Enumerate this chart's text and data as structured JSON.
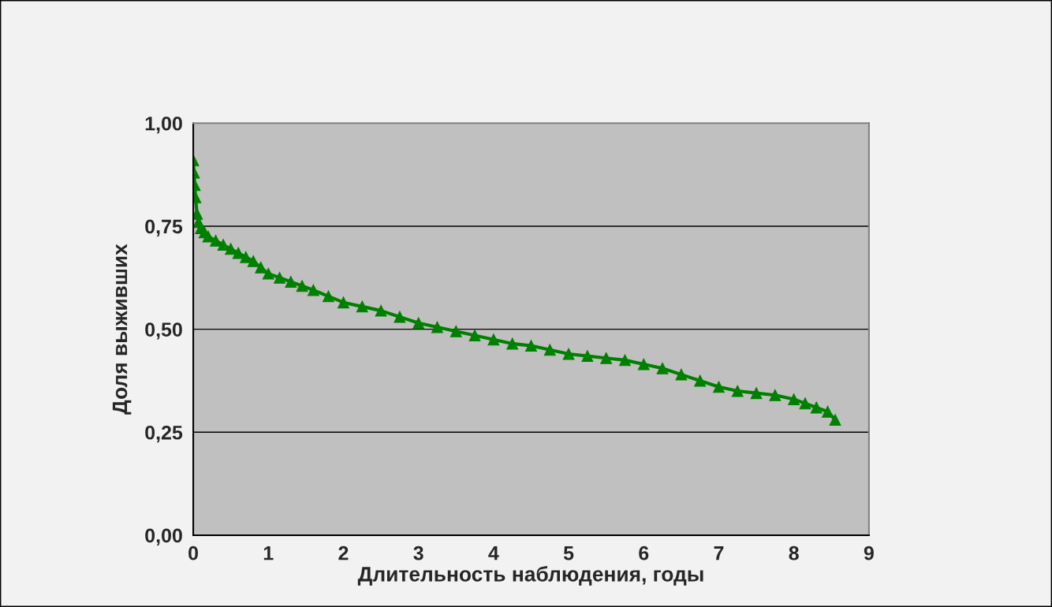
{
  "chart_data": {
    "type": "line",
    "xlabel": "Длительность наблюдения, годы",
    "ylabel": "Доля выживших",
    "x": [
      0,
      0.01,
      0.02,
      0.03,
      0.05,
      0.07,
      0.1,
      0.15,
      0.2,
      0.3,
      0.4,
      0.5,
      0.6,
      0.7,
      0.8,
      0.9,
      1.0,
      1.15,
      1.3,
      1.45,
      1.6,
      1.8,
      2.0,
      2.25,
      2.5,
      2.75,
      3.0,
      3.25,
      3.5,
      3.75,
      4.0,
      4.25,
      4.5,
      4.75,
      5.0,
      5.25,
      5.5,
      5.75,
      6.0,
      6.25,
      6.5,
      6.75,
      7.0,
      7.25,
      7.5,
      7.75,
      8.0,
      8.15,
      8.3,
      8.45,
      8.55
    ],
    "series": [
      {
        "color": "#008000",
        "values": [
          0.91,
          0.88,
          0.85,
          0.82,
          0.78,
          0.76,
          0.745,
          0.735,
          0.725,
          0.715,
          0.705,
          0.695,
          0.685,
          0.675,
          0.665,
          0.65,
          0.635,
          0.625,
          0.615,
          0.605,
          0.595,
          0.58,
          0.565,
          0.555,
          0.545,
          0.53,
          0.515,
          0.505,
          0.495,
          0.485,
          0.475,
          0.465,
          0.46,
          0.45,
          0.44,
          0.435,
          0.43,
          0.425,
          0.415,
          0.405,
          0.39,
          0.375,
          0.36,
          0.35,
          0.345,
          0.34,
          0.33,
          0.32,
          0.31,
          0.3,
          0.28
        ]
      }
    ],
    "xlim": [
      0,
      9
    ],
    "xticks": [
      0,
      1,
      2,
      3,
      4,
      5,
      6,
      7,
      8,
      9
    ],
    "ylim": [
      0,
      1
    ],
    "yticks": [
      {
        "value": 0,
        "label": "0,00"
      },
      {
        "value": 0.25,
        "label": "0,25"
      },
      {
        "value": 0.5,
        "label": "0,50"
      },
      {
        "value": 0.75,
        "label": "0,75"
      },
      {
        "value": 1,
        "label": "1,00"
      }
    ],
    "grid": "y",
    "legend": false,
    "marker": "triangle",
    "line_style": "solid"
  }
}
